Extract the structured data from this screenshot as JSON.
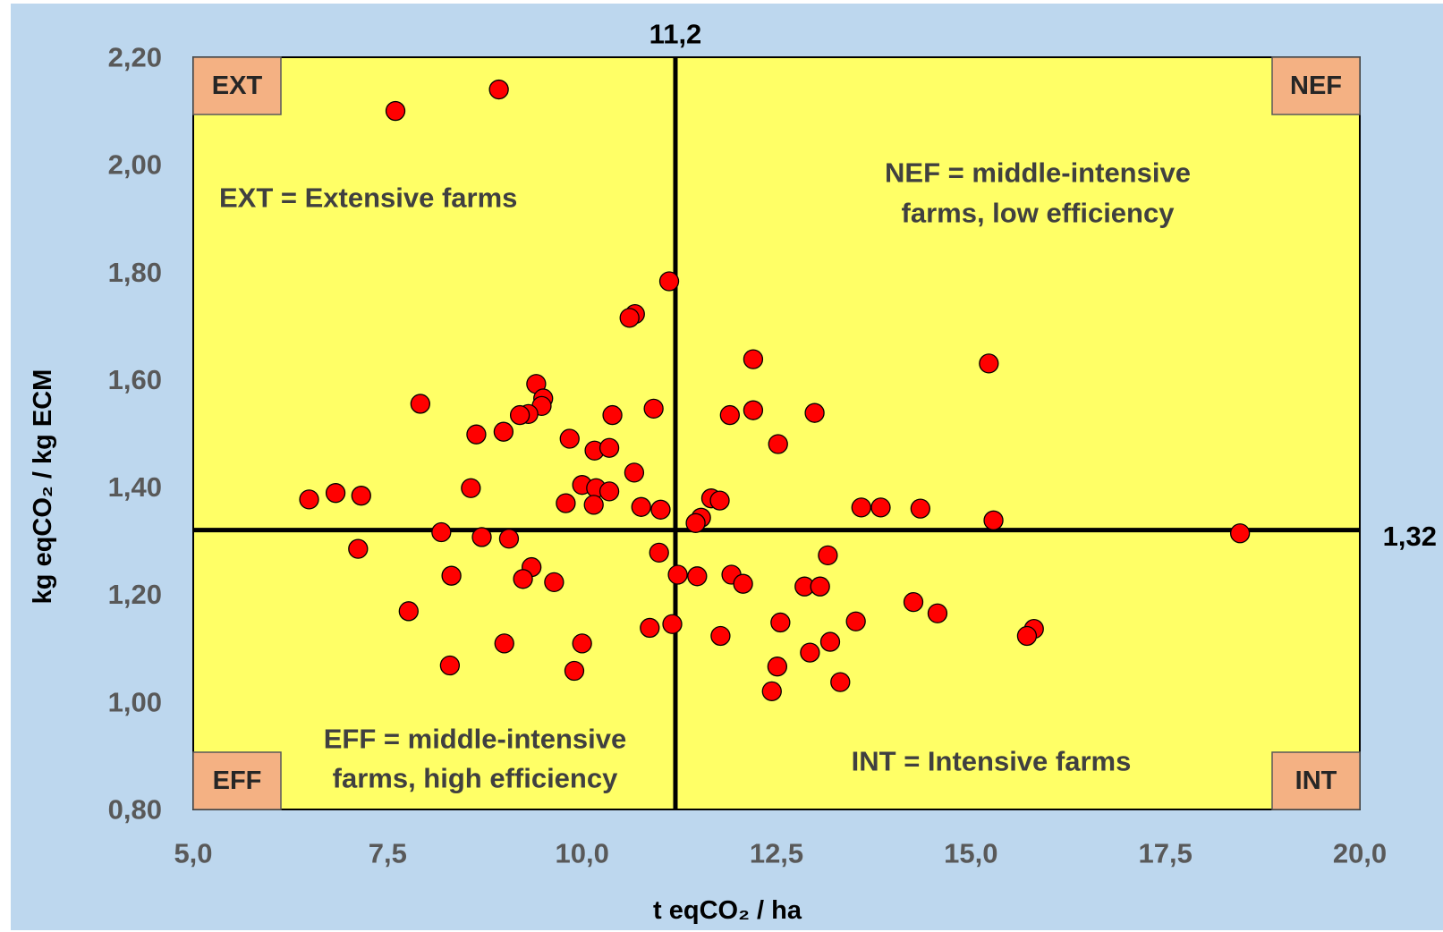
{
  "chart_data": {
    "type": "scatter",
    "xlabel": "t eqCO₂ / ha",
    "ylabel": "kg eqCO₂ / kg ECM",
    "xlim": [
      5,
      20
    ],
    "ylim": [
      0.8,
      2.2
    ],
    "x_ticks": [
      5,
      7.5,
      10,
      12.5,
      15,
      17.5,
      20
    ],
    "x_tick_labels": [
      "5,0",
      "7,5",
      "10,0",
      "12,5",
      "15,0",
      "17,5",
      "20,0"
    ],
    "y_ticks": [
      0.8,
      1.0,
      1.2,
      1.4,
      1.6,
      1.8,
      2.0,
      2.2
    ],
    "y_tick_labels": [
      "0,80",
      "1,00",
      "1,20",
      "1,40",
      "1,60",
      "1,80",
      "2,00",
      "2,20"
    ],
    "grid": false,
    "legend": "none",
    "reference_lines": {
      "x": 11.2,
      "x_label": "11,2",
      "y": 1.32,
      "y_label": "1,32"
    },
    "quadrants": [
      {
        "label": "EXT",
        "position": "top-left"
      },
      {
        "label": "NEF",
        "position": "top-right"
      },
      {
        "label": "EFF",
        "position": "bottom-left"
      },
      {
        "label": "INT",
        "position": "bottom-right"
      }
    ],
    "annotations": [
      {
        "lines": [
          "EXT = Extensive farms"
        ]
      },
      {
        "lines": [
          "NEF = middle-intensive",
          "farms, low efficiency"
        ]
      },
      {
        "lines": [
          "EFF = middle-intensive",
          "farms, high efficiency"
        ]
      },
      {
        "lines": [
          "INT = Intensive farms"
        ]
      }
    ],
    "colors": {
      "page_background": "#BDD7EE",
      "plot_background": "#FFFF66",
      "marker_fill": "#FF0000",
      "marker_stroke": "#000000",
      "quadrant_box": "#F4B183",
      "quadrant_box_border": "#595959",
      "reference_line": "#000000"
    },
    "series": [
      {
        "points": [
          [
            7.6,
            2.1
          ],
          [
            8.93,
            2.14
          ],
          [
            11.12,
            1.783
          ],
          [
            10.68,
            1.722
          ],
          [
            10.61,
            1.715
          ],
          [
            12.2,
            1.638
          ],
          [
            15.23,
            1.63
          ],
          [
            9.41,
            1.592
          ],
          [
            9.5,
            1.565
          ],
          [
            9.48,
            1.551
          ],
          [
            7.92,
            1.555
          ],
          [
            9.31,
            1.536
          ],
          [
            9.2,
            1.534
          ],
          [
            10.92,
            1.546
          ],
          [
            10.39,
            1.534
          ],
          [
            11.9,
            1.534
          ],
          [
            12.2,
            1.543
          ],
          [
            12.99,
            1.538
          ],
          [
            8.64,
            1.498
          ],
          [
            8.99,
            1.503
          ],
          [
            9.84,
            1.49
          ],
          [
            12.52,
            1.48
          ],
          [
            10.16,
            1.468
          ],
          [
            10.35,
            1.473
          ],
          [
            8.57,
            1.398
          ],
          [
            10.0,
            1.404
          ],
          [
            10.18,
            1.398
          ],
          [
            10.35,
            1.392
          ],
          [
            10.67,
            1.427
          ],
          [
            6.49,
            1.377
          ],
          [
            6.83,
            1.389
          ],
          [
            7.16,
            1.384
          ],
          [
            9.79,
            1.37
          ],
          [
            10.15,
            1.367
          ],
          [
            10.76,
            1.363
          ],
          [
            11.01,
            1.358
          ],
          [
            11.66,
            1.379
          ],
          [
            11.77,
            1.375
          ],
          [
            11.53,
            1.343
          ],
          [
            11.46,
            1.333
          ],
          [
            13.59,
            1.362
          ],
          [
            13.84,
            1.362
          ],
          [
            14.35,
            1.36
          ],
          [
            15.29,
            1.338
          ],
          [
            18.46,
            1.314
          ],
          [
            8.19,
            1.316
          ],
          [
            8.71,
            1.307
          ],
          [
            9.06,
            1.304
          ],
          [
            7.12,
            1.285
          ],
          [
            10.99,
            1.278
          ],
          [
            13.16,
            1.273
          ],
          [
            9.35,
            1.251
          ],
          [
            8.32,
            1.235
          ],
          [
            9.24,
            1.229
          ],
          [
            9.64,
            1.223
          ],
          [
            11.23,
            1.237
          ],
          [
            11.48,
            1.234
          ],
          [
            11.92,
            1.237
          ],
          [
            12.07,
            1.22
          ],
          [
            12.86,
            1.215
          ],
          [
            13.06,
            1.215
          ],
          [
            14.26,
            1.186
          ],
          [
            14.57,
            1.165
          ],
          [
            7.77,
            1.169
          ],
          [
            11.16,
            1.145
          ],
          [
            10.87,
            1.138
          ],
          [
            12.55,
            1.148
          ],
          [
            13.52,
            1.15
          ],
          [
            11.78,
            1.123
          ],
          [
            15.81,
            1.136
          ],
          [
            15.72,
            1.123
          ],
          [
            13.19,
            1.112
          ],
          [
            9.0,
            1.109
          ],
          [
            10.0,
            1.109
          ],
          [
            12.93,
            1.092
          ],
          [
            8.3,
            1.068
          ],
          [
            12.51,
            1.066
          ],
          [
            9.9,
            1.058
          ],
          [
            13.32,
            1.037
          ],
          [
            12.44,
            1.02
          ]
        ]
      }
    ]
  }
}
